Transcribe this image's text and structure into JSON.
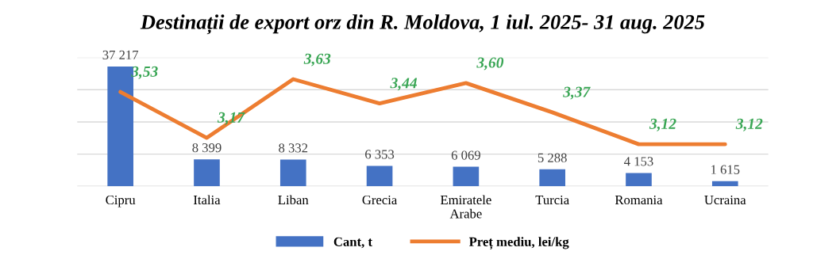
{
  "chart_data": {
    "type": "bar",
    "title": "Destinații de export orz din R. Moldova, 1 iul. 2025- 31 aug. 2025",
    "categories": [
      "Cipru",
      "Italia",
      "Liban",
      "Grecia",
      "Emiratele\nArabe",
      "Turcia",
      "Romania",
      "Ucraina"
    ],
    "series": [
      {
        "name": "Cant, t",
        "color": "#4472c4",
        "values": [
          37217,
          8399,
          8332,
          6353,
          6069,
          5288,
          4153,
          1615
        ],
        "value_labels": [
          "37 217",
          "8 399",
          "8 332",
          "6 353",
          "6 069",
          "5 288",
          "4 153",
          "1 615"
        ]
      },
      {
        "name": "Preț mediu, lei/kg",
        "type": "line",
        "axis": "y2",
        "color": "#ed7d31",
        "values": [
          3.53,
          3.17,
          3.63,
          3.44,
          3.6,
          3.37,
          3.12,
          3.12
        ],
        "value_labels": [
          "3,53",
          "3,17",
          "3,63",
          "3,44",
          "3,60",
          "3,37",
          "3,12",
          "3,12"
        ]
      }
    ],
    "ylim": [
      0,
      40000
    ],
    "yticks": [
      {
        "value": 0,
        "label": null
      },
      {
        "value": 10000,
        "label": null
      },
      {
        "value": 20000,
        "label": null
      },
      {
        "value": 30000,
        "label": null
      },
      {
        "value": 40000,
        "label": null
      }
    ],
    "y2lim": [
      2.79,
      3.8
    ],
    "tick_labels": "x",
    "grid": "y",
    "legend": "bottom",
    "marker": "none",
    "line_style": "solid"
  }
}
